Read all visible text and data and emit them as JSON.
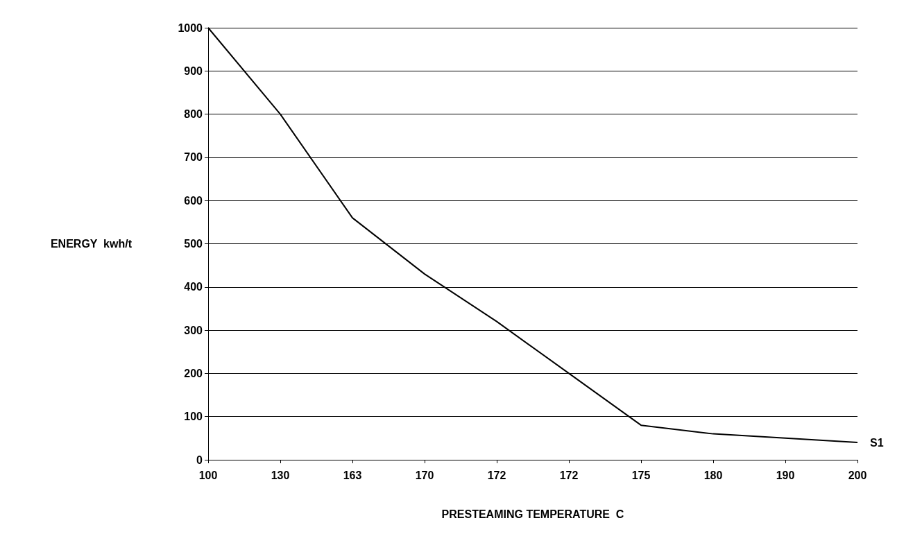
{
  "chart_data": {
    "type": "line",
    "xlabel": "PRESTEAMING TEMPERATURE  C",
    "ylabel": "ENERGY  kwh/t",
    "categories": [
      "100",
      "130",
      "163",
      "170",
      "172",
      "172",
      "175",
      "180",
      "190",
      "200"
    ],
    "series": [
      {
        "name": "S1",
        "color": "#000000",
        "values": [
          1000,
          800,
          560,
          430,
          320,
          200,
          80,
          60,
          50,
          40
        ]
      }
    ],
    "ylim": [
      0,
      1000
    ],
    "yticks": [
      0,
      100,
      200,
      300,
      400,
      500,
      600,
      700,
      800,
      900,
      1000
    ],
    "grid": "y",
    "marker": "none"
  }
}
